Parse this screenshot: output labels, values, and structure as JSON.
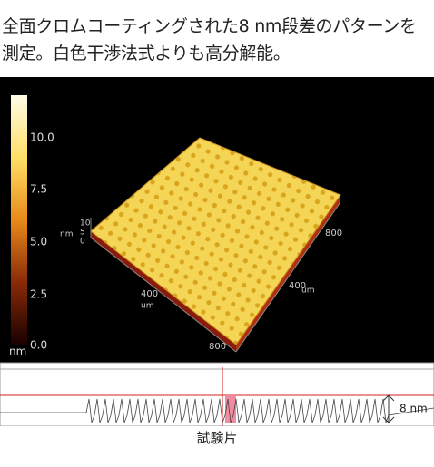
{
  "heading": {
    "line1": "全面クロムコーティングされた8 nm段差のパターンを",
    "line2": "測定。白色干渉法式よりも高分解能。"
  },
  "figure": {
    "colorbar": {
      "labels": [
        "10.0",
        "7.5",
        "5.0",
        "2.5",
        "0.0"
      ],
      "unit": "nm"
    },
    "axes": {
      "z_labels": [
        "10",
        "5",
        "0"
      ],
      "z_unit": "nm",
      "x_labels": [
        "400",
        "800"
      ],
      "x_unit": "um",
      "y_labels": [
        "400",
        "800"
      ],
      "y_unit": "um"
    },
    "profile_label": "8 nm"
  },
  "caption": "試験片"
}
